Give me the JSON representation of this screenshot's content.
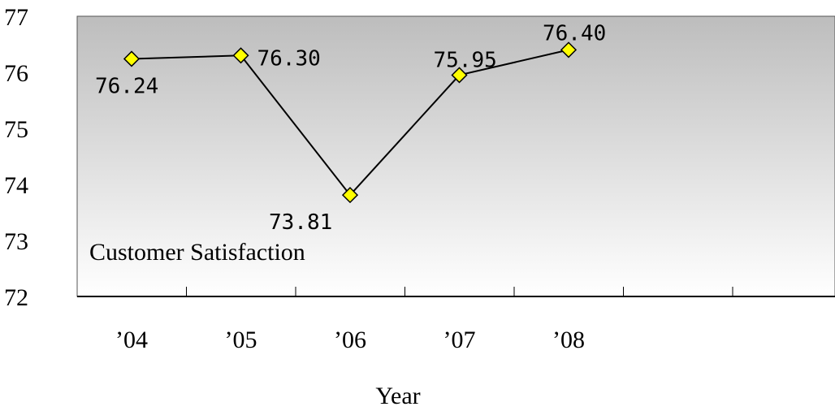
{
  "chart_data": {
    "type": "line",
    "title": "",
    "xlabel": "Year",
    "ylabel": "",
    "categories": [
      "’04",
      "’05",
      "’06",
      "’07",
      "’08"
    ],
    "series": [
      {
        "name": "Customer Satisfaction",
        "values": [
          76.24,
          76.3,
          73.81,
          75.95,
          76.4
        ],
        "labels": [
          "76.24",
          "76.30",
          "73.81",
          "75.95",
          "76.40"
        ]
      }
    ],
    "ylim": [
      72,
      77
    ],
    "yticks": [
      "72",
      "73",
      "74",
      "75",
      "76",
      "77"
    ],
    "grid": false,
    "plot_background": "gradient gray to white",
    "line_color": "#000000",
    "marker": "diamond",
    "marker_color": "#ffff00"
  }
}
